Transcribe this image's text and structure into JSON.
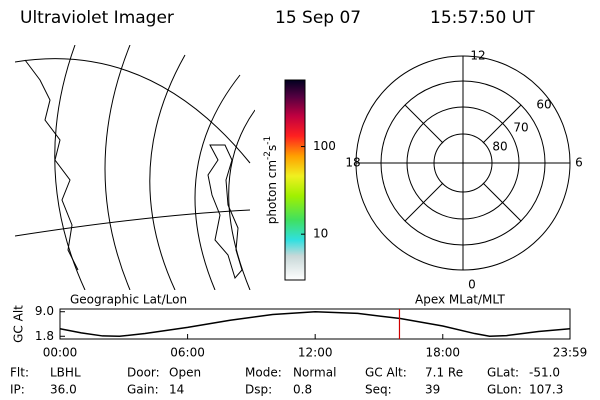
{
  "header": {
    "title": "Ultraviolet Imager",
    "date": "15 Sep 07",
    "time": "15:57:50 UT"
  },
  "colorbar": {
    "label_parts": [
      "photon cm",
      "-2",
      "s",
      "-1"
    ],
    "log": true,
    "clim": [
      3,
      575
    ],
    "ticks": [
      10,
      100
    ]
  },
  "polar": {
    "hour_labels": [
      "12",
      "6",
      "0",
      "18"
    ],
    "lat_labels": [
      "60",
      "70",
      "80"
    ]
  },
  "chart_data": {
    "type": "line",
    "ylabel": "GC Alt",
    "left_title": "Geographic Lat/Lon",
    "right_title": "Apex MLat/MLT",
    "x": [
      0,
      1,
      2,
      2.8,
      4,
      6,
      8,
      10,
      12,
      14,
      16,
      18,
      19.5,
      20.2,
      21,
      22.5,
      23.983
    ],
    "series": [
      {
        "color": "#000000",
        "values": [
          4.0,
          2.8,
          1.9,
          1.8,
          2.6,
          4.4,
          6.5,
          8.2,
          9.0,
          8.5,
          7.0,
          4.8,
          2.6,
          1.8,
          2.0,
          3.2,
          4.0
        ]
      }
    ],
    "xlim": [
      0,
      23.983
    ],
    "xticks": [
      {
        "value": 0,
        "label": "00:00"
      },
      {
        "value": 6,
        "label": "06:00"
      },
      {
        "value": 12,
        "label": "12:00"
      },
      {
        "value": 18,
        "label": "18:00"
      },
      {
        "value": 23.983,
        "label": "23:59"
      }
    ],
    "ylim": [
      1.0,
      9.8
    ],
    "yticks": [
      {
        "value": 9,
        "label": "9.0"
      },
      1.8
    ],
    "current_time": 15.964,
    "current_time_color": "#d00000"
  },
  "footer": {
    "rows": [
      [
        {
          "label": "Flt:",
          "value": "LBHL"
        },
        {
          "label": "Door:",
          "value": "Open"
        },
        {
          "label": "Mode:",
          "value": "Normal"
        },
        {
          "label": "GC Alt:",
          "value": "7.1 Re"
        },
        {
          "label": "GLat:",
          "value": "-51.0"
        }
      ],
      [
        {
          "label": "IP:",
          "value": "36.0"
        },
        {
          "label": "Gain:",
          "value": "14"
        },
        {
          "label": "Dsp:",
          "value": "0.8"
        },
        {
          "label": "Seq:",
          "value": "39"
        },
        {
          "label": "GLon:",
          "value": "107.3"
        }
      ]
    ]
  }
}
